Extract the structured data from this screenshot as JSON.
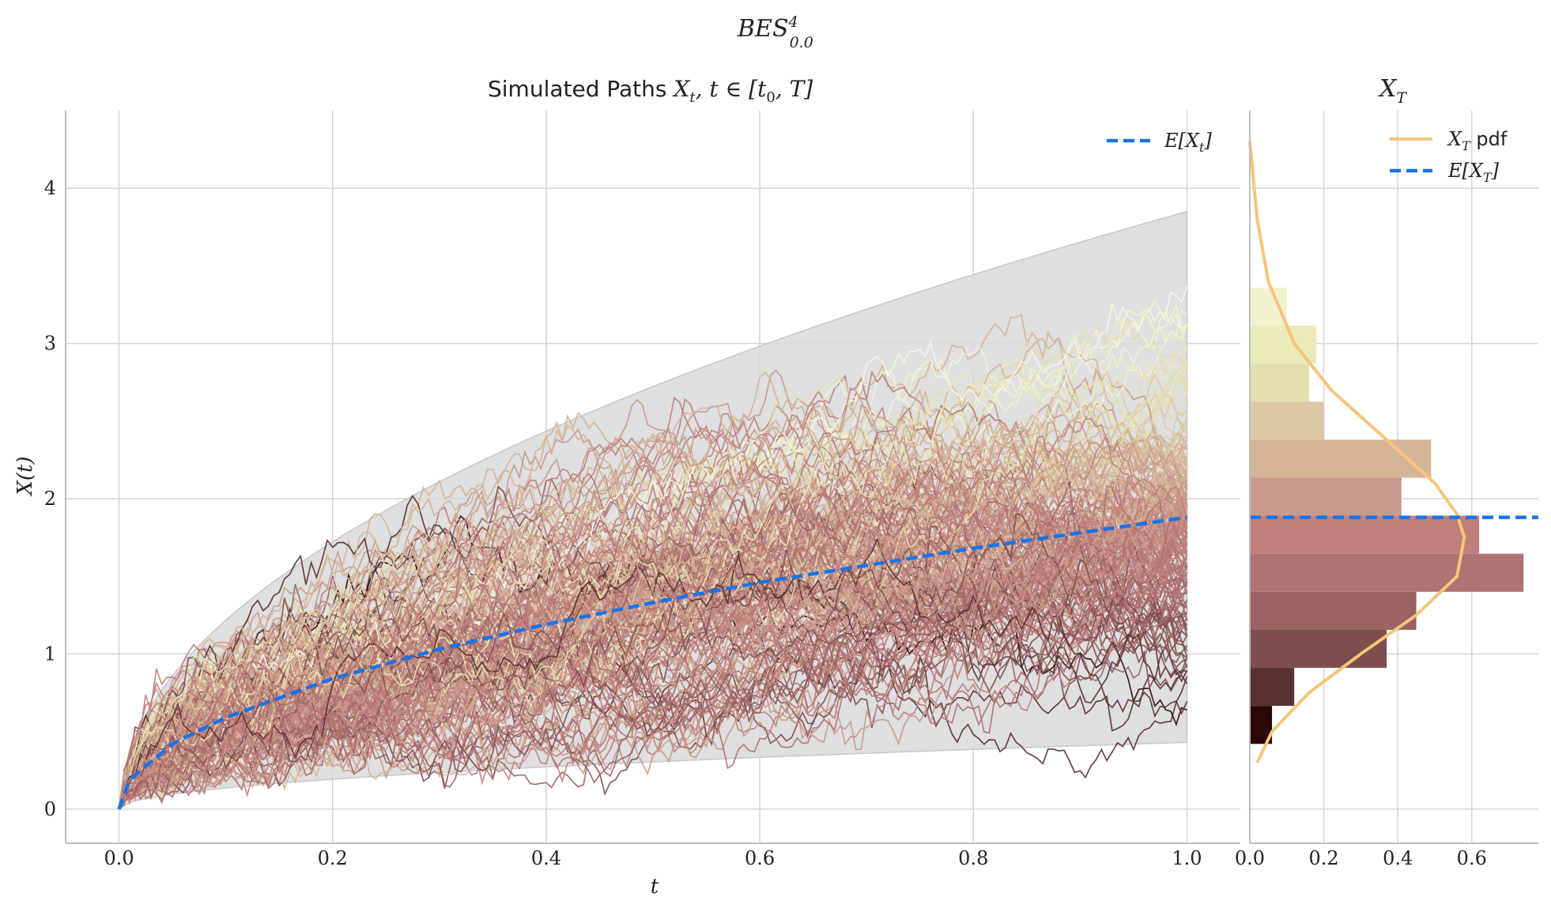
{
  "figure": {
    "suptitle": "BES",
    "suptitle_sup": "4",
    "suptitle_sub": "0.0"
  },
  "colors": {
    "mean": "#1a73e8",
    "pdf": "#f6c47a",
    "band": "#d9d9d9",
    "grid": "#d4d4d4",
    "axis": "#bdbdbd"
  },
  "chart_data": [
    {
      "type": "line",
      "title_prefix": "Simulated Paths",
      "title_math": "X",
      "title_math_sub": "t",
      "title_math_rest": ", t ∈ [t",
      "title_math_sub2": "0",
      "title_math_end": ", T]",
      "xlabel": "t",
      "ylabel": "X(t)",
      "xlim": [
        -0.05,
        1.05
      ],
      "ylim": [
        -0.22,
        4.5
      ],
      "xticks": [
        "0.0",
        "0.2",
        "0.4",
        "0.6",
        "0.8",
        "1.0"
      ],
      "yticks": [
        "0",
        "1",
        "2",
        "3",
        "4"
      ],
      "grid": true,
      "legend_position": "top-right",
      "legend": [
        {
          "label": "E[X",
          "sub": "t",
          "end": "]",
          "style": "dashed"
        }
      ],
      "n_paths_approx": 200,
      "mean_curve": {
        "name": "E[X_t]",
        "x": [
          0,
          0.01,
          0.05,
          0.1,
          0.2,
          0.3,
          0.4,
          0.5,
          0.6,
          0.7,
          0.8,
          0.9,
          1.0
        ],
        "y": [
          0,
          0.19,
          0.42,
          0.59,
          0.84,
          1.03,
          1.19,
          1.33,
          1.46,
          1.57,
          1.68,
          1.78,
          1.88
        ]
      },
      "band_upper": {
        "x": [
          0,
          0.05,
          0.1,
          0.2,
          0.3,
          0.4,
          0.5,
          0.6,
          0.7,
          0.8,
          0.9,
          1.0
        ],
        "y": [
          0,
          0.87,
          1.23,
          1.74,
          2.13,
          2.46,
          2.75,
          3.01,
          3.25,
          3.48,
          3.69,
          3.85
        ]
      },
      "band_lower": {
        "x": [
          0,
          0.05,
          0.1,
          0.2,
          0.3,
          0.4,
          0.5,
          0.6,
          0.7,
          0.8,
          0.9,
          1.0
        ],
        "y": [
          0,
          0.1,
          0.13,
          0.18,
          0.22,
          0.26,
          0.29,
          0.32,
          0.35,
          0.38,
          0.4,
          0.43
        ]
      }
    },
    {
      "type": "bar",
      "orientation": "horizontal",
      "title": "X",
      "title_sub": "T",
      "xlim": [
        0,
        0.78
      ],
      "xticks": [
        "0.0",
        "0.2",
        "0.4",
        "0.6"
      ],
      "legend_position": "top-right",
      "legend": [
        {
          "label": "X",
          "sub": "T",
          "end": " pdf",
          "style": "solid"
        },
        {
          "label": "E[X",
          "sub": "T",
          "end": "]",
          "style": "dashed"
        }
      ],
      "bins": [
        0.42,
        0.665,
        0.91,
        1.155,
        1.4,
        1.645,
        1.89,
        2.135,
        2.38,
        2.625,
        2.87,
        3.115,
        3.36
      ],
      "values": [
        0.06,
        0.12,
        0.37,
        0.45,
        0.74,
        0.62,
        0.41,
        0.49,
        0.2,
        0.16,
        0.18,
        0.1,
        0.1
      ],
      "bar_colors": [
        "#2a0808",
        "#5a3030",
        "#7e4e4e",
        "#9a6262",
        "#b07272",
        "#bf7f7a",
        "#c99a8c",
        "#d4b496",
        "#dcc8a4",
        "#e2deae",
        "#eaeab8",
        "#f2f2d2",
        "#f4f5e6"
      ],
      "mean": 1.88,
      "pdf_curve": {
        "x": [
          0.3,
          0.5,
          0.75,
          1.0,
          1.25,
          1.5,
          1.75,
          1.9,
          2.1,
          2.4,
          2.7,
          3.0,
          3.4,
          3.8,
          4.3
        ],
        "y": [
          0.02,
          0.06,
          0.16,
          0.3,
          0.45,
          0.56,
          0.58,
          0.56,
          0.5,
          0.36,
          0.22,
          0.12,
          0.05,
          0.02,
          0.0
        ]
      }
    }
  ]
}
